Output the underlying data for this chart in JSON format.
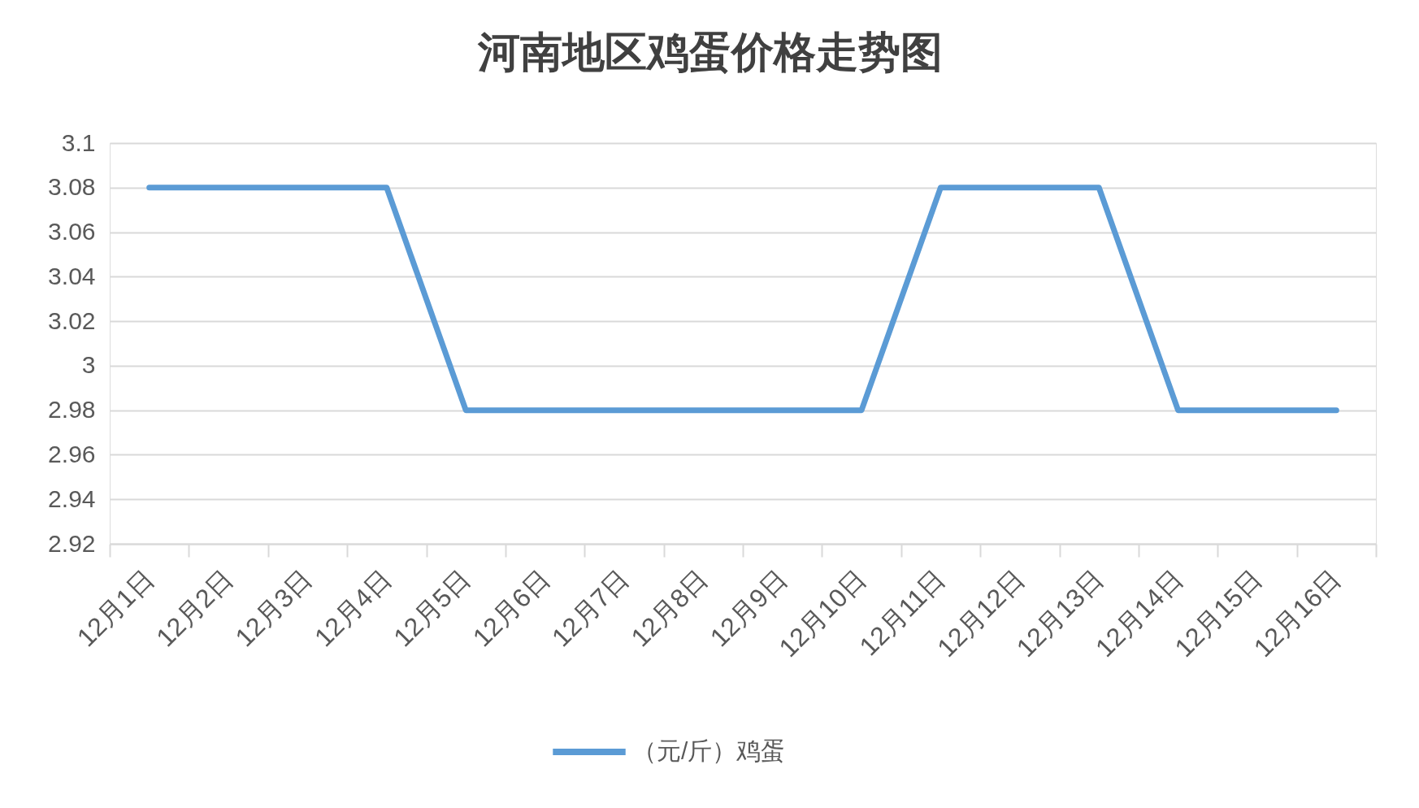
{
  "chart_data": {
    "type": "line",
    "title": "河南地区鸡蛋价格走势图",
    "categories": [
      "12月1日",
      "12月2日",
      "12月3日",
      "12月4日",
      "12月5日",
      "12月6日",
      "12月7日",
      "12月8日",
      "12月9日",
      "12月10日",
      "12月11日",
      "12月12日",
      "12月13日",
      "12月14日",
      "12月15日",
      "12月16日"
    ],
    "series": [
      {
        "name": "（元/斤）鸡蛋",
        "color": "#5b9bd5",
        "values": [
          3.08,
          3.08,
          3.08,
          3.08,
          2.98,
          2.98,
          2.98,
          2.98,
          2.98,
          2.98,
          3.08,
          3.08,
          3.08,
          2.98,
          2.98,
          2.98
        ]
      }
    ],
    "ylim": [
      2.92,
      3.1
    ],
    "yticks": [
      2.92,
      2.94,
      2.96,
      2.98,
      3,
      3.02,
      3.04,
      3.06,
      3.08,
      3.1
    ],
    "grid": "y",
    "legend": "bottom"
  }
}
